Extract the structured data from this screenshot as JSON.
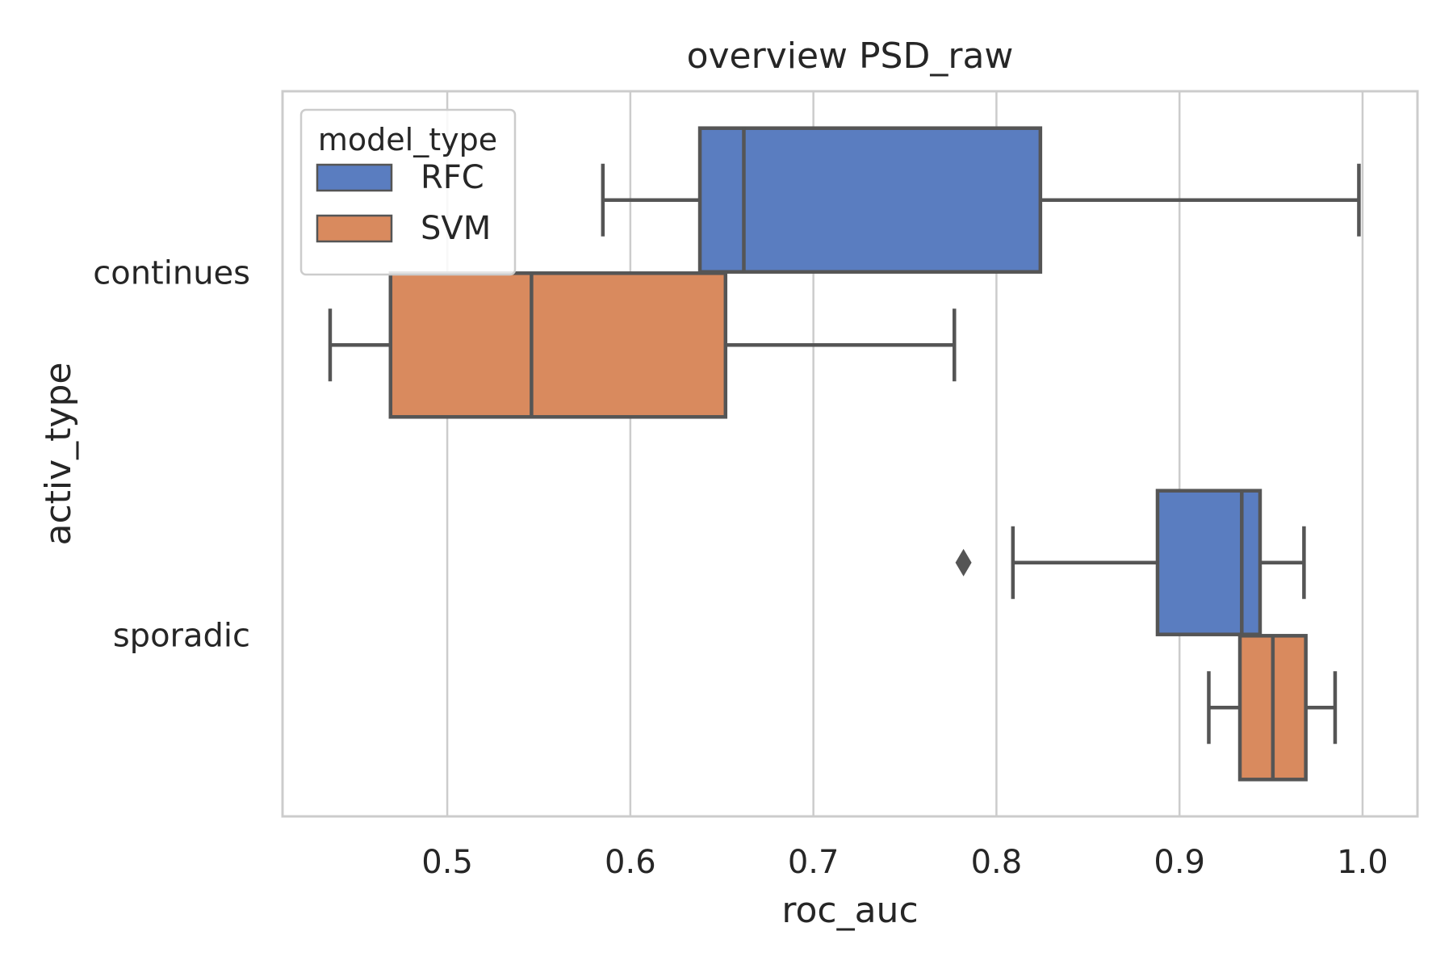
{
  "chart_data": {
    "type": "boxplot",
    "orientation": "horizontal",
    "title": "overview PSD_raw",
    "xlabel": "roc_auc",
    "ylabel": "activ_type",
    "xlim": [
      0.41,
      1.03
    ],
    "xticks": [
      0.5,
      0.6,
      0.7,
      0.8,
      0.9,
      1.0
    ],
    "xtick_labels": [
      "0.5",
      "0.6",
      "0.7",
      "0.8",
      "0.9",
      "1.0"
    ],
    "categories": [
      "continues",
      "sporadic"
    ],
    "grid": "vertical",
    "legend": {
      "title": "model_type",
      "placement": "top-left",
      "entries": [
        "RFC",
        "SVM"
      ]
    },
    "colors": {
      "RFC": "#5a7dc0",
      "SVM": "#d98a5e",
      "line": "#555555",
      "grid": "#cccccc"
    },
    "series": [
      {
        "name": "RFC",
        "boxes": [
          {
            "category": "continues",
            "whisker_low": 0.585,
            "q1": 0.638,
            "median": 0.662,
            "q3": 0.824,
            "whisker_high": 0.998,
            "outliers": []
          },
          {
            "category": "sporadic",
            "whisker_low": 0.809,
            "q1": 0.888,
            "median": 0.934,
            "q3": 0.944,
            "whisker_high": 0.968,
            "outliers": [
              0.782
            ]
          }
        ]
      },
      {
        "name": "SVM",
        "boxes": [
          {
            "category": "continues",
            "whisker_low": 0.436,
            "q1": 0.469,
            "median": 0.546,
            "q3": 0.652,
            "whisker_high": 0.777,
            "outliers": []
          },
          {
            "category": "sporadic",
            "whisker_low": 0.916,
            "q1": 0.933,
            "median": 0.951,
            "q3": 0.969,
            "whisker_high": 0.985,
            "outliers": []
          }
        ]
      }
    ]
  }
}
